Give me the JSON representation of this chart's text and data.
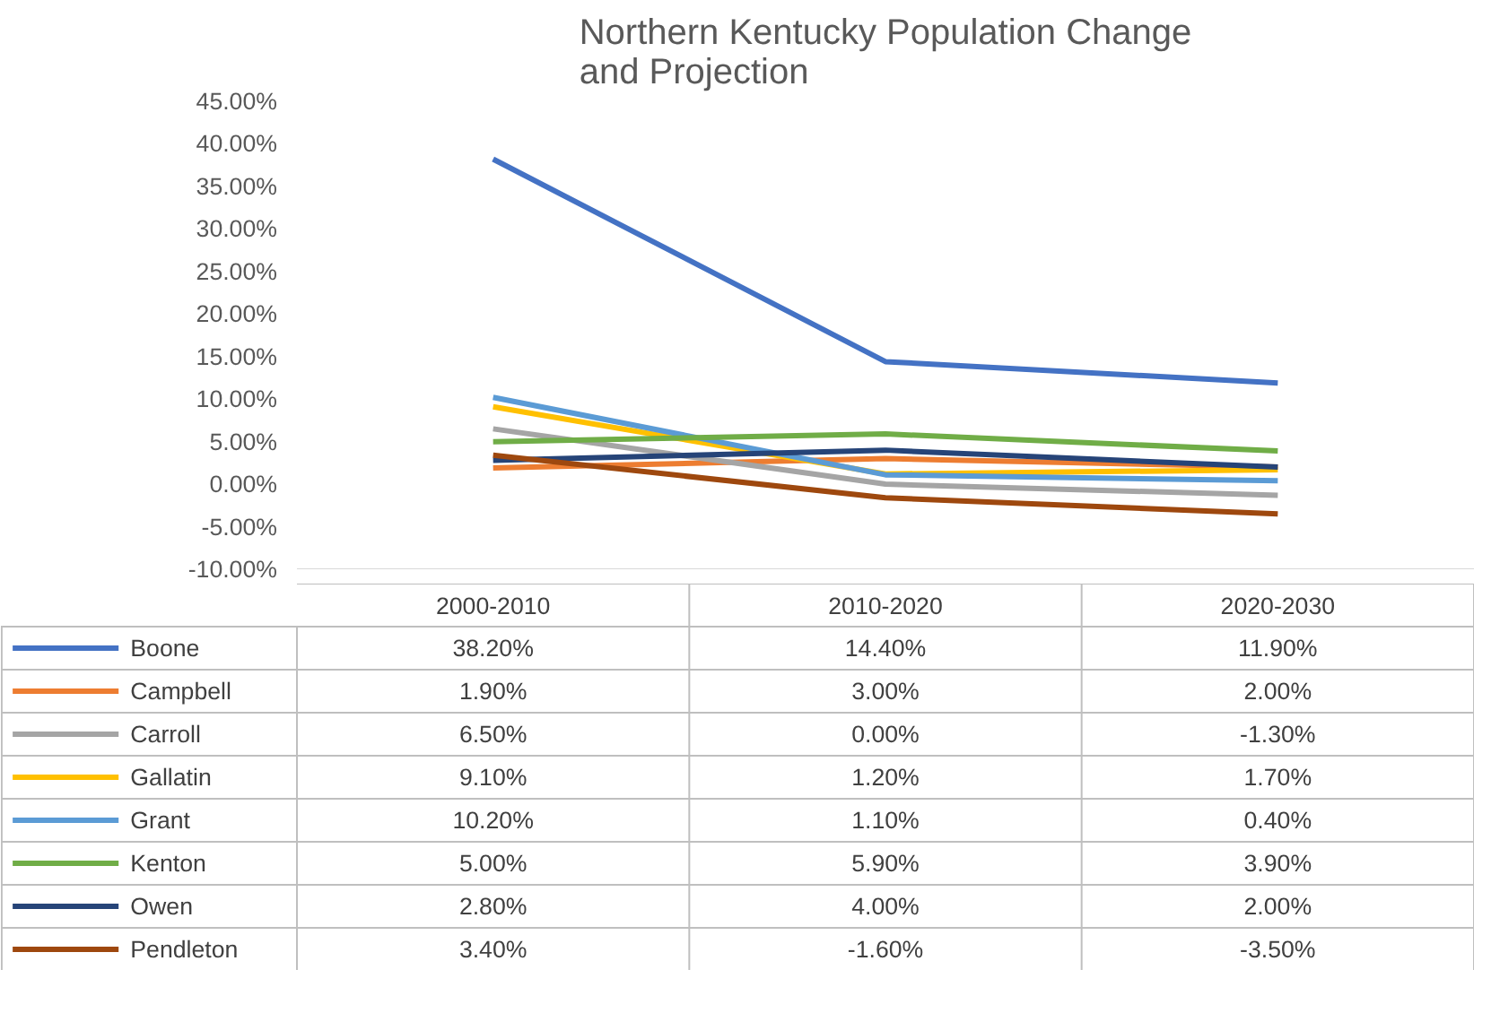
{
  "chart_data": {
    "type": "line",
    "title": "Northern Kentucky Population Change\nand Projection",
    "categories": [
      "2000-2010",
      "2010-2020",
      "2020-2030"
    ],
    "series": [
      {
        "name": "Boone",
        "color": "#4472c4",
        "values": [
          38.2,
          14.4,
          11.9
        ],
        "value_labels": [
          "38.20%",
          "14.40%",
          "11.90%"
        ]
      },
      {
        "name": "Campbell",
        "color": "#ed7d31",
        "values": [
          1.9,
          3.0,
          2.0
        ],
        "value_labels": [
          "1.90%",
          "3.00%",
          "2.00%"
        ]
      },
      {
        "name": "Carroll",
        "color": "#a5a5a5",
        "values": [
          6.5,
          0.0,
          -1.3
        ],
        "value_labels": [
          "6.50%",
          "0.00%",
          "-1.30%"
        ]
      },
      {
        "name": "Gallatin",
        "color": "#ffc000",
        "values": [
          9.1,
          1.2,
          1.7
        ],
        "value_labels": [
          "9.10%",
          "1.20%",
          "1.70%"
        ]
      },
      {
        "name": "Grant",
        "color": "#5b9bd5",
        "values": [
          10.2,
          1.1,
          0.4
        ],
        "value_labels": [
          "10.20%",
          "1.10%",
          "0.40%"
        ]
      },
      {
        "name": "Kenton",
        "color": "#70ad47",
        "values": [
          5.0,
          5.9,
          3.9
        ],
        "value_labels": [
          "5.00%",
          "5.90%",
          "3.90%"
        ]
      },
      {
        "name": "Owen",
        "color": "#264478",
        "values": [
          2.8,
          4.0,
          2.0
        ],
        "value_labels": [
          "2.80%",
          "4.00%",
          "2.00%"
        ]
      },
      {
        "name": "Pendleton",
        "color": "#9e480e",
        "values": [
          3.4,
          -1.6,
          -3.5
        ],
        "value_labels": [
          "3.40%",
          "-1.60%",
          "-3.50%"
        ]
      }
    ],
    "ylim": [
      -10,
      45
    ],
    "yticks": [
      {
        "value": -10,
        "label": "-10.00%"
      },
      {
        "value": -5,
        "label": "-5.00%"
      },
      {
        "value": 0,
        "label": "0.00%"
      },
      {
        "value": 5,
        "label": "5.00%"
      },
      {
        "value": 10,
        "label": "10.00%"
      },
      {
        "value": 15,
        "label": "15.00%"
      },
      {
        "value": 20,
        "label": "20.00%"
      },
      {
        "value": 25,
        "label": "25.00%"
      },
      {
        "value": 30,
        "label": "30.00%"
      },
      {
        "value": 35,
        "label": "35.00%"
      },
      {
        "value": 40,
        "label": "40.00%"
      },
      {
        "value": 45,
        "label": "45.00%"
      }
    ],
    "grid": false,
    "legend": "bottom",
    "marker": "none",
    "line_style": "solid"
  }
}
